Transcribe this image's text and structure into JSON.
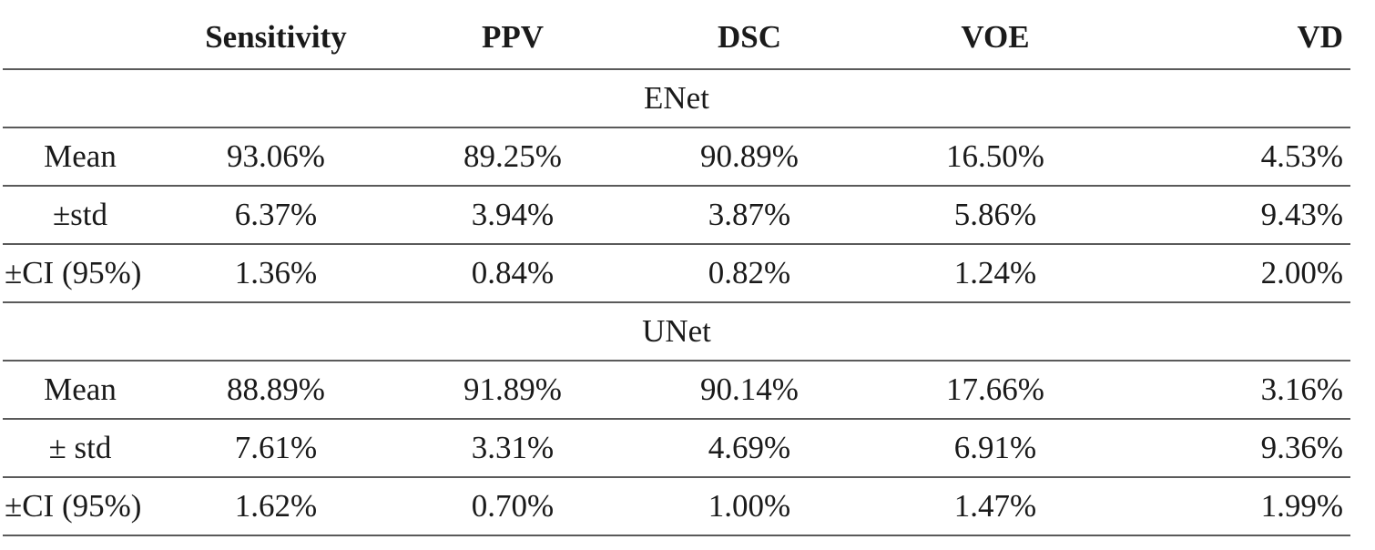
{
  "table": {
    "headers": [
      "",
      "Sensitivity",
      "PPV",
      "DSC",
      "VOE",
      "VD"
    ],
    "groups": [
      {
        "name": "ENet",
        "rows": [
          {
            "label": "Mean",
            "values": [
              "93.06%",
              "89.25%",
              "90.89%",
              "16.50%",
              "4.53%"
            ]
          },
          {
            "label": "±std",
            "values": [
              "6.37%",
              "3.94%",
              "3.87%",
              "5.86%",
              "9.43%"
            ]
          },
          {
            "label": "±CI (95%)",
            "values": [
              "1.36%",
              "0.84%",
              "0.82%",
              "1.24%",
              "2.00%"
            ]
          }
        ]
      },
      {
        "name": "UNet",
        "rows": [
          {
            "label": "Mean",
            "values": [
              "88.89%",
              "91.89%",
              "90.14%",
              "17.66%",
              "3.16%"
            ]
          },
          {
            "label": "± std",
            "values": [
              "7.61%",
              "3.31%",
              "4.69%",
              "6.91%",
              "9.36%"
            ]
          },
          {
            "label": "±CI (95%)",
            "values": [
              "1.62%",
              "0.70%",
              "1.00%",
              "1.47%",
              "1.99%"
            ]
          }
        ]
      }
    ]
  }
}
